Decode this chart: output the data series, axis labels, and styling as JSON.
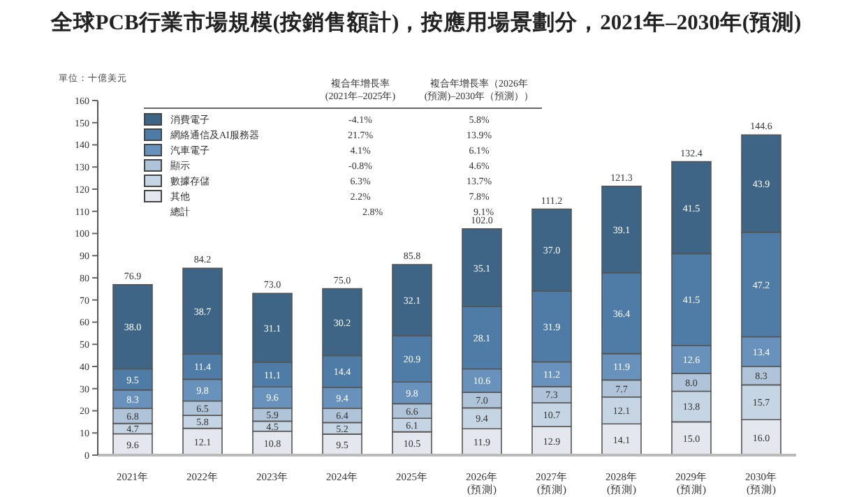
{
  "chart_data": {
    "type": "bar",
    "stacked": true,
    "title": "全球PCB行業市場規模(按銷售額計)，按應用場景劃分，2021年–2030年(預測)",
    "ylabel": "單位：十億美元",
    "categories": [
      "2021年",
      "2022年",
      "2023年",
      "2024年",
      "2025年",
      "2026年\n(預測)",
      "2027年\n(預測)",
      "2028年\n(預測)",
      "2029年\n(預測)",
      "2030年\n(預測)"
    ],
    "series": [
      {
        "name": "其他",
        "color": "#e4e8ee",
        "values": [
          9.6,
          12.1,
          10.8,
          9.5,
          10.5,
          11.9,
          12.9,
          14.1,
          15.0,
          16.0
        ],
        "value_labels": [
          "9.6",
          "12.1",
          "10.8",
          "9.5",
          "10.5",
          "11.9",
          "12.9",
          "14.1",
          "15.0",
          "16.0"
        ]
      },
      {
        "name": "數據存儲",
        "color": "#c6d5e4",
        "values": [
          4.7,
          5.8,
          4.5,
          5.2,
          6.1,
          9.4,
          10.7,
          12.1,
          13.8,
          15.7
        ],
        "value_labels": [
          "4.7",
          "5.8",
          "4.5",
          "5.2",
          "6.1",
          "9.4",
          "10.7",
          "12.1",
          "13.8",
          "15.7"
        ]
      },
      {
        "name": "顯示",
        "color": "#b0c4d9",
        "values": [
          6.8,
          6.5,
          5.9,
          6.4,
          6.6,
          7.0,
          7.3,
          7.7,
          8.0,
          8.3
        ],
        "value_labels": [
          "6.8",
          "6.5",
          "5.9",
          "6.4",
          "6.6",
          "7.0",
          "7.3",
          "7.7",
          "8.0",
          "8.3"
        ]
      },
      {
        "name": "汽車電子",
        "color": "#6891bb",
        "values": [
          8.3,
          9.8,
          9.6,
          9.4,
          9.8,
          10.6,
          11.2,
          11.9,
          12.6,
          13.4
        ],
        "value_labels": [
          "8.3",
          "9.8",
          "9.6",
          "9.4",
          "9.8",
          "10.6",
          "11.2",
          "11.9",
          "12.6",
          "13.4"
        ]
      },
      {
        "name": "網絡通信及AI服務器",
        "color": "#4f7ca7",
        "values": [
          9.5,
          11.4,
          11.1,
          14.4,
          20.9,
          28.1,
          31.9,
          36.4,
          41.5,
          47.2
        ],
        "value_labels": [
          "9.5",
          "11.4",
          "11.1",
          "14.4",
          "20.9",
          "28.1",
          "31.9",
          "36.4",
          "41.5",
          "47.2"
        ]
      },
      {
        "name": "消費電子",
        "color": "#3e6585",
        "values": [
          38.0,
          38.7,
          31.1,
          30.2,
          32.1,
          35.1,
          37.0,
          39.1,
          41.5,
          43.9
        ],
        "value_labels": [
          "38.0",
          "38.7",
          "31.1",
          "30.2",
          "32.1",
          "35.1",
          "37.0",
          "39.1",
          "41.5",
          "43.9"
        ]
      }
    ],
    "totals": [
      "76.9",
      "84.2",
      "73.0",
      "75.0",
      "85.8",
      "102.0",
      "111.2",
      "121.3",
      "132.4",
      "144.6"
    ],
    "legend": "top left",
    "ylim": [
      0,
      160
    ],
    "yticks": [
      0,
      10,
      20,
      30,
      40,
      50,
      60,
      70,
      80,
      90,
      100,
      110,
      120,
      130,
      140,
      150,
      160
    ],
    "annotations": [
      "複合年增長率\n(2021年–2025年)",
      "複合年增長率（2026年\n(預測)–2030年（預測））",
      "2.2%",
      "7.8%",
      "6.3%",
      "13.7%",
      "-0.8%",
      "4.6%",
      "4.1%",
      "6.1%",
      "21.7%",
      "13.9%",
      "-4.1%",
      "5.8%",
      "總計",
      "2.8%",
      "9.1%"
    ]
  }
}
